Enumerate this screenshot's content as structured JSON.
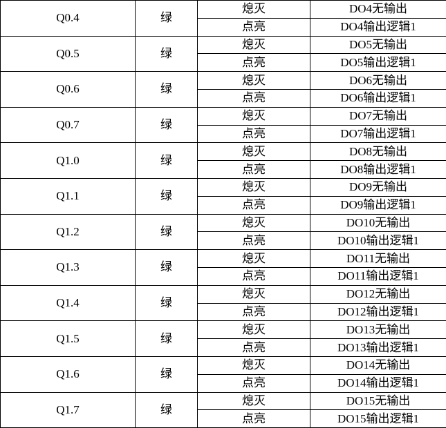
{
  "rows": [
    {
      "addr": "Q0.4",
      "color": "绿",
      "off": "熄灭",
      "on": "点亮",
      "off_desc": "DO4无输出",
      "on_desc": "DO4输出逻辑1"
    },
    {
      "addr": "Q0.5",
      "color": "绿",
      "off": "熄灭",
      "on": "点亮",
      "off_desc": "DO5无输出",
      "on_desc": "DO5输出逻辑1"
    },
    {
      "addr": "Q0.6",
      "color": "绿",
      "off": "熄灭",
      "on": "点亮",
      "off_desc": "DO6无输出",
      "on_desc": "DO6输出逻辑1"
    },
    {
      "addr": "Q0.7",
      "color": "绿",
      "off": "熄灭",
      "on": "点亮",
      "off_desc": "DO7无输出",
      "on_desc": "DO7输出逻辑1"
    },
    {
      "addr": "Q1.0",
      "color": "绿",
      "off": "熄灭",
      "on": "点亮",
      "off_desc": "DO8无输出",
      "on_desc": "DO8输出逻辑1"
    },
    {
      "addr": "Q1.1",
      "color": "绿",
      "off": "熄灭",
      "on": "点亮",
      "off_desc": "DO9无输出",
      "on_desc": "DO9输出逻辑1"
    },
    {
      "addr": "Q1.2",
      "color": "绿",
      "off": "熄灭",
      "on": "点亮",
      "off_desc": "DO10无输出",
      "on_desc": "DO10输出逻辑1"
    },
    {
      "addr": "Q1.3",
      "color": "绿",
      "off": "熄灭",
      "on": "点亮",
      "off_desc": "DO11无输出",
      "on_desc": "DO11输出逻辑1"
    },
    {
      "addr": "Q1.4",
      "color": "绿",
      "off": "熄灭",
      "on": "点亮",
      "off_desc": "DO12无输出",
      "on_desc": "DO12输出逻辑1"
    },
    {
      "addr": "Q1.5",
      "color": "绿",
      "off": "熄灭",
      "on": "点亮",
      "off_desc": "DO13无输出",
      "on_desc": "DO13输出逻辑1"
    },
    {
      "addr": "Q1.6",
      "color": "绿",
      "off": "熄灭",
      "on": "点亮",
      "off_desc": "DO14无输出",
      "on_desc": "DO14输出逻辑1"
    },
    {
      "addr": "Q1.7",
      "color": "绿",
      "off": "熄灭",
      "on": "点亮",
      "off_desc": "DO15无输出",
      "on_desc": "DO15输出逻辑1"
    }
  ]
}
